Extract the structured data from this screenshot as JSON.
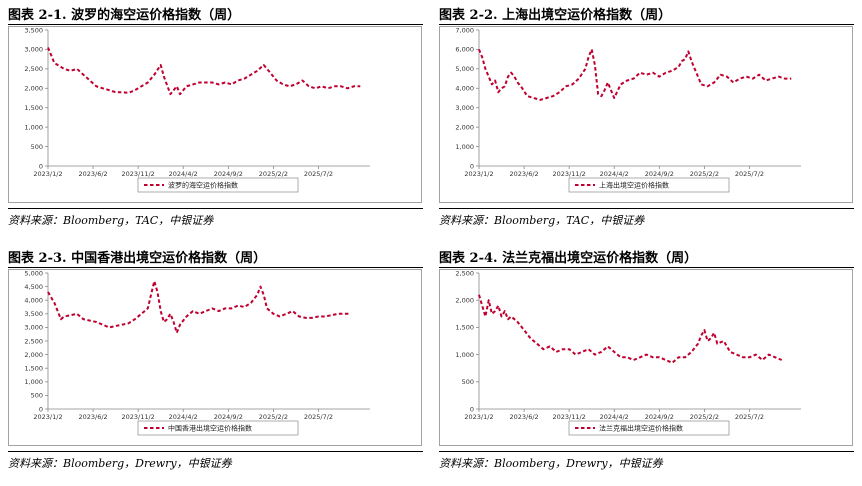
{
  "panels": [
    {
      "title": "图表 2-1. 波罗的海空运价格指数（周）",
      "source": "资料来源：Bloomberg，TAC，中银证券",
      "chart_data": {
        "type": "line",
        "title": "波罗的海空运价格指数",
        "series": [
          {
            "name": "波罗的海空运价格指数",
            "color": "#c00030",
            "style": "dashed"
          }
        ],
        "ylim": [
          0,
          3500
        ],
        "yticks": [
          0,
          500,
          1000,
          1500,
          2000,
          2500,
          3000,
          3500
        ],
        "ytick_labels": [
          "0",
          "500",
          "1,000",
          "1,500",
          "2,000",
          "2,500",
          "3,000",
          "3,500"
        ],
        "xlim": [
          0,
          1.0
        ],
        "xticks": [
          0,
          0.14,
          0.28,
          0.42,
          0.56,
          0.7,
          0.84
        ],
        "xtick_labels": [
          "2023/1/2",
          "2023/6/2",
          "2023/11/2",
          "2024/4/2",
          "2024/9/2",
          "2025/2/2",
          "2025/7/2"
        ],
        "x": [
          0,
          0.01,
          0.02,
          0.03,
          0.05,
          0.07,
          0.09,
          0.11,
          0.13,
          0.15,
          0.17,
          0.19,
          0.21,
          0.23,
          0.25,
          0.27,
          0.29,
          0.31,
          0.33,
          0.35,
          0.36,
          0.38,
          0.39,
          0.4,
          0.41,
          0.43,
          0.45,
          0.47,
          0.49,
          0.51,
          0.53,
          0.55,
          0.57,
          0.59,
          0.61,
          0.63,
          0.65,
          0.67,
          0.69,
          0.71,
          0.73,
          0.75,
          0.77,
          0.79,
          0.81,
          0.83,
          0.85,
          0.87,
          0.89,
          0.91,
          0.93,
          0.95,
          0.97
        ],
        "values": [
          3050,
          2850,
          2650,
          2600,
          2500,
          2450,
          2500,
          2350,
          2200,
          2050,
          2000,
          1950,
          1900,
          1900,
          1880,
          1950,
          2050,
          2150,
          2350,
          2600,
          2300,
          1850,
          1950,
          2050,
          1850,
          2050,
          2100,
          2150,
          2150,
          2150,
          2100,
          2150,
          2100,
          2200,
          2250,
          2350,
          2450,
          2600,
          2400,
          2200,
          2100,
          2050,
          2100,
          2200,
          2050,
          2000,
          2050,
          2000,
          2050,
          2050,
          2000,
          2050,
          2050
        ]
      }
    },
    {
      "title": "图表 2-2. 上海出境空运价格指数（周）",
      "source": "资料来源：Bloomberg，TAC，中银证券",
      "chart_data": {
        "type": "line",
        "title": "上海出境空运价格指数",
        "series": [
          {
            "name": "上海出境空运价格指数",
            "color": "#c00030",
            "style": "dashed"
          }
        ],
        "ylim": [
          0,
          7000
        ],
        "yticks": [
          0,
          1000,
          2000,
          3000,
          4000,
          5000,
          6000,
          7000
        ],
        "ytick_labels": [
          "0",
          "1,000",
          "2,000",
          "3,000",
          "4,000",
          "5,000",
          "6,000",
          "7,000"
        ],
        "xlim": [
          0,
          1.0
        ],
        "xticks": [
          0,
          0.14,
          0.28,
          0.42,
          0.56,
          0.7,
          0.84
        ],
        "xtick_labels": [
          "2023/1/2",
          "2023/6/2",
          "2023/11/2",
          "2024/4/2",
          "2024/9/2",
          "2025/2/2",
          "2025/7/2"
        ],
        "x": [
          0,
          0.01,
          0.02,
          0.03,
          0.04,
          0.05,
          0.06,
          0.07,
          0.08,
          0.09,
          0.1,
          0.11,
          0.12,
          0.13,
          0.15,
          0.17,
          0.19,
          0.21,
          0.23,
          0.25,
          0.27,
          0.29,
          0.31,
          0.33,
          0.34,
          0.35,
          0.36,
          0.37,
          0.38,
          0.39,
          0.4,
          0.41,
          0.42,
          0.44,
          0.46,
          0.48,
          0.5,
          0.52,
          0.54,
          0.56,
          0.58,
          0.6,
          0.62,
          0.63,
          0.64,
          0.65,
          0.66,
          0.67,
          0.68,
          0.69,
          0.71,
          0.73,
          0.75,
          0.77,
          0.79,
          0.81,
          0.83,
          0.85,
          0.87,
          0.89,
          0.91,
          0.93,
          0.95,
          0.97
        ],
        "values": [
          6000,
          5600,
          5000,
          4600,
          4200,
          4400,
          3800,
          4000,
          4100,
          4600,
          4800,
          4600,
          4300,
          4100,
          3600,
          3500,
          3400,
          3500,
          3600,
          3800,
          4100,
          4200,
          4500,
          5000,
          5600,
          6000,
          5200,
          3700,
          3600,
          3900,
          4300,
          3900,
          3500,
          4200,
          4400,
          4500,
          4800,
          4700,
          4800,
          4600,
          4800,
          4900,
          5100,
          5400,
          5500,
          5900,
          5400,
          5000,
          4600,
          4200,
          4100,
          4300,
          4700,
          4600,
          4300,
          4500,
          4600,
          4500,
          4700,
          4400,
          4500,
          4600,
          4500,
          4500
        ]
      }
    },
    {
      "title": "图表 2-3. 中国香港出境空运价格指数（周）",
      "source": "资料来源：Bloomberg，Drewry，中银证券",
      "chart_data": {
        "type": "line",
        "title": "中国香港出境空运价格指数",
        "series": [
          {
            "name": "中国香港出境空运价格指数",
            "color": "#c00030",
            "style": "dashed"
          }
        ],
        "ylim": [
          0,
          5000
        ],
        "yticks": [
          0,
          500,
          1000,
          1500,
          2000,
          2500,
          3000,
          3500,
          4000,
          4500,
          5000
        ],
        "ytick_labels": [
          "0",
          "500",
          "1,000",
          "1,500",
          "2,000",
          "2,500",
          "3,000",
          "3,500",
          "4,000",
          "4,500",
          "5,000"
        ],
        "xlim": [
          0,
          1.0
        ],
        "xticks": [
          0,
          0.14,
          0.28,
          0.42,
          0.56,
          0.7,
          0.84
        ],
        "xtick_labels": [
          "2023/1/2",
          "2023/6/2",
          "2023/11/2",
          "2024/4/2",
          "2024/9/2",
          "2025/2/2",
          "2025/7/2"
        ],
        "x": [
          0,
          0.01,
          0.02,
          0.03,
          0.04,
          0.05,
          0.07,
          0.09,
          0.11,
          0.13,
          0.15,
          0.17,
          0.19,
          0.21,
          0.23,
          0.25,
          0.27,
          0.29,
          0.31,
          0.32,
          0.33,
          0.34,
          0.35,
          0.36,
          0.37,
          0.38,
          0.39,
          0.4,
          0.41,
          0.43,
          0.45,
          0.47,
          0.49,
          0.51,
          0.53,
          0.55,
          0.57,
          0.59,
          0.61,
          0.63,
          0.65,
          0.66,
          0.67,
          0.68,
          0.7,
          0.72,
          0.74,
          0.76,
          0.78,
          0.8,
          0.82,
          0.84,
          0.86,
          0.88,
          0.9,
          0.92,
          0.94
        ],
        "values": [
          4300,
          4100,
          3900,
          3600,
          3300,
          3400,
          3450,
          3500,
          3300,
          3250,
          3200,
          3100,
          3000,
          3050,
          3100,
          3150,
          3300,
          3500,
          3700,
          4200,
          4700,
          4300,
          3600,
          3200,
          3300,
          3500,
          3200,
          2800,
          3100,
          3400,
          3600,
          3500,
          3600,
          3700,
          3600,
          3700,
          3700,
          3800,
          3750,
          3900,
          4200,
          4500,
          4200,
          3700,
          3500,
          3400,
          3500,
          3600,
          3400,
          3350,
          3350,
          3400,
          3400,
          3450,
          3500,
          3500,
          3500
        ]
      }
    },
    {
      "title": "图表 2-4. 法兰克福出境空运价格指数（周）",
      "source": "资料来源：Bloomberg，Drewry，中银证券",
      "chart_data": {
        "type": "line",
        "title": "法兰克福出境空运价格指数",
        "series": [
          {
            "name": "法兰克福出境空运价格指数",
            "color": "#c00030",
            "style": "dashed"
          }
        ],
        "ylim": [
          0,
          2500
        ],
        "yticks": [
          0,
          500,
          1000,
          1500,
          2000,
          2500
        ],
        "ytick_labels": [
          "0",
          "500",
          "1,000",
          "1,500",
          "2,000",
          "2,500"
        ],
        "xlim": [
          0,
          1.0
        ],
        "xticks": [
          0,
          0.14,
          0.28,
          0.42,
          0.56,
          0.7,
          0.84
        ],
        "xtick_labels": [
          "2023/1/2",
          "2023/6/2",
          "2023/11/2",
          "2024/4/2",
          "2024/9/2",
          "2025/2/2",
          "2025/7/2"
        ],
        "x": [
          0,
          0.01,
          0.02,
          0.03,
          0.04,
          0.05,
          0.06,
          0.07,
          0.08,
          0.09,
          0.1,
          0.11,
          0.12,
          0.14,
          0.16,
          0.18,
          0.2,
          0.22,
          0.24,
          0.26,
          0.28,
          0.3,
          0.32,
          0.34,
          0.36,
          0.38,
          0.4,
          0.42,
          0.44,
          0.46,
          0.48,
          0.5,
          0.52,
          0.54,
          0.56,
          0.58,
          0.6,
          0.62,
          0.64,
          0.66,
          0.68,
          0.69,
          0.7,
          0.71,
          0.72,
          0.73,
          0.74,
          0.76,
          0.78,
          0.8,
          0.82,
          0.84,
          0.86,
          0.88,
          0.9,
          0.92,
          0.94
        ],
        "values": [
          2100,
          1900,
          1700,
          2000,
          1750,
          1800,
          1900,
          1700,
          1800,
          1650,
          1700,
          1650,
          1600,
          1450,
          1300,
          1200,
          1100,
          1150,
          1050,
          1100,
          1100,
          1000,
          1050,
          1100,
          1000,
          1050,
          1150,
          1050,
          950,
          950,
          900,
          950,
          1000,
          950,
          950,
          900,
          850,
          950,
          950,
          1050,
          1200,
          1350,
          1450,
          1250,
          1300,
          1400,
          1200,
          1250,
          1050,
          1000,
          950,
          950,
          1000,
          900,
          1000,
          950,
          900
        ]
      }
    }
  ]
}
